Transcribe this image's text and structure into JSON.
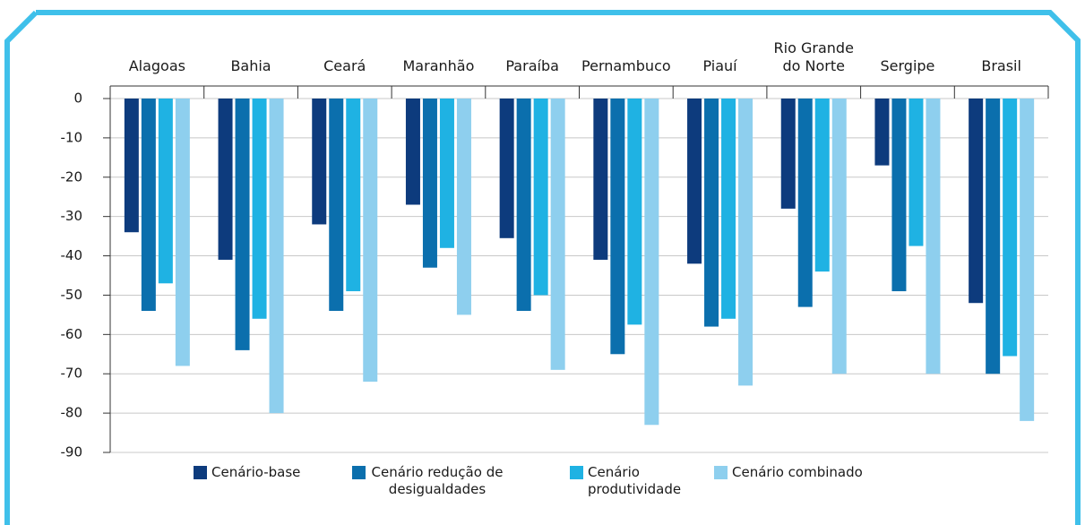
{
  "chart_data": {
    "type": "bar",
    "categories": [
      "Alagoas",
      "Bahia",
      "Ceará",
      "Maranhão",
      "Paraíba",
      "Pernambuco",
      "Piauí",
      "Rio Grande do Norte",
      "Sergipe",
      "Brasil"
    ],
    "series": [
      {
        "name": "Cenário-base",
        "color": "#0d3b7d",
        "values": [
          -34,
          -41,
          -32,
          -27,
          -35.5,
          -41,
          -42,
          -28,
          -17,
          -52
        ]
      },
      {
        "name": "Cenário redução de desigualdades",
        "color": "#0b6fad",
        "values": [
          -54,
          -64,
          -54,
          -43,
          -54,
          -65,
          -58,
          -53,
          -49,
          -70
        ]
      },
      {
        "name": "Cenário produtividade",
        "color": "#1fb2e3",
        "values": [
          -47,
          -56,
          -49,
          -38,
          -50,
          -57.5,
          -56,
          -44,
          -37.5,
          -65.5
        ]
      },
      {
        "name": "Cenário combinado",
        "color": "#8ecfee",
        "values": [
          -68,
          -80,
          -72,
          -55,
          -69,
          -83,
          -73,
          -70,
          -70,
          -82
        ]
      }
    ],
    "ylim": [
      -90,
      0
    ],
    "yticks": [
      0,
      -10,
      -20,
      -30,
      -40,
      -50,
      -60,
      -70,
      -80,
      -90
    ],
    "grid": true
  }
}
